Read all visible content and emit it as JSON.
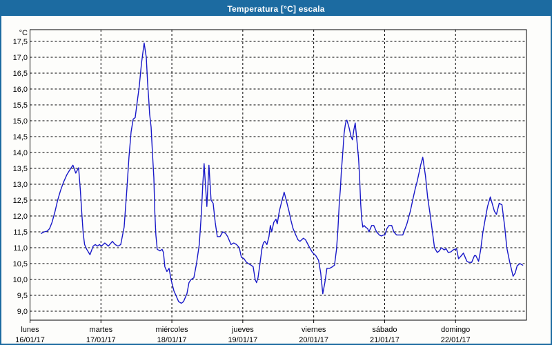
{
  "window": {
    "title": "Temperatura [°C] escala"
  },
  "colors": {
    "titlebar_background": "#1c6ba1",
    "window_border": "#1c6ba1",
    "title_text": "#ffffff",
    "plot_background": "#fdfdfb",
    "plot_border": "#000000",
    "gridline": "#000000",
    "series_line": "#1818c8",
    "axis_text": "#000000"
  },
  "chart_data": {
    "type": "line",
    "title": "Temperatura [°C] escala",
    "legend": "none",
    "grid": "dashed black, horizontal every 0.5 °C, vertical every 1 day",
    "y_axis": {
      "unit_label": "°C",
      "min": 9.0,
      "max": 17.5,
      "tick_step": 0.5,
      "decimal_separator": ",",
      "tick_labels": [
        "17,5",
        "17,0",
        "16,5",
        "16,0",
        "15,5",
        "15,0",
        "14,5",
        "14,0",
        "13,5",
        "13,0",
        "12,5",
        "12,0",
        "11,5",
        "11,0",
        "10,5",
        "10,0",
        "9,5",
        "9,0"
      ]
    },
    "x_axis": {
      "span_days": 7,
      "days": [
        {
          "name": "lunes",
          "date": "16/01/17"
        },
        {
          "name": "martes",
          "date": "17/01/17"
        },
        {
          "name": "miércoles",
          "date": "18/01/17"
        },
        {
          "name": "jueves",
          "date": "19/01/17"
        },
        {
          "name": "viernes",
          "date": "20/01/17"
        },
        {
          "name": "sábado",
          "date": "21/01/17"
        },
        {
          "name": "domingo",
          "date": "22/01/17"
        }
      ]
    },
    "series": [
      {
        "name": "Temperatura",
        "units": "°C",
        "x_units": "days since lunes 16/01/17 00:00",
        "points": [
          [
            0.16,
            11.45
          ],
          [
            0.2,
            11.5
          ],
          [
            0.24,
            11.52
          ],
          [
            0.275,
            11.6
          ],
          [
            0.31,
            11.8
          ],
          [
            0.35,
            12.12
          ],
          [
            0.39,
            12.5
          ],
          [
            0.43,
            12.8
          ],
          [
            0.47,
            13.05
          ],
          [
            0.52,
            13.3
          ],
          [
            0.56,
            13.45
          ],
          [
            0.605,
            13.6
          ],
          [
            0.645,
            13.35
          ],
          [
            0.685,
            13.52
          ],
          [
            0.71,
            12.8
          ],
          [
            0.73,
            12.1
          ],
          [
            0.75,
            11.45
          ],
          [
            0.77,
            11.1
          ],
          [
            0.8,
            10.95
          ],
          [
            0.845,
            10.78
          ],
          [
            0.89,
            11.05
          ],
          [
            0.92,
            11.1
          ],
          [
            0.95,
            11.05
          ],
          [
            0.98,
            11.1
          ],
          [
            1.007,
            11.05
          ],
          [
            1.055,
            11.15
          ],
          [
            1.104,
            11.05
          ],
          [
            1.162,
            11.2
          ],
          [
            1.201,
            11.1
          ],
          [
            1.24,
            11.05
          ],
          [
            1.279,
            11.1
          ],
          [
            1.327,
            11.65
          ],
          [
            1.366,
            12.85
          ],
          [
            1.395,
            13.85
          ],
          [
            1.425,
            14.65
          ],
          [
            1.454,
            15.05
          ],
          [
            1.483,
            15.1
          ],
          [
            1.512,
            15.6
          ],
          [
            1.541,
            16.1
          ],
          [
            1.571,
            16.8
          ],
          [
            1.609,
            17.45
          ],
          [
            1.639,
            17.0
          ],
          [
            1.658,
            16.2
          ],
          [
            1.673,
            15.7
          ],
          [
            1.687,
            15.2
          ],
          [
            1.707,
            14.8
          ],
          [
            1.726,
            14.0
          ],
          [
            1.746,
            13.2
          ],
          [
            1.76,
            12.1
          ],
          [
            1.775,
            11.4
          ],
          [
            1.794,
            10.95
          ],
          [
            1.833,
            10.9
          ],
          [
            1.862,
            10.95
          ],
          [
            1.882,
            10.85
          ],
          [
            1.901,
            10.4
          ],
          [
            1.93,
            10.25
          ],
          [
            1.96,
            10.35
          ],
          [
            1.989,
            10.0
          ],
          [
            2.028,
            9.65
          ],
          [
            2.057,
            9.5
          ],
          [
            2.096,
            9.3
          ],
          [
            2.135,
            9.25
          ],
          [
            2.164,
            9.3
          ],
          [
            2.212,
            9.55
          ],
          [
            2.242,
            9.9
          ],
          [
            2.271,
            10.0
          ],
          [
            2.31,
            10.05
          ],
          [
            2.348,
            10.5
          ],
          [
            2.387,
            11.1
          ],
          [
            2.417,
            12.1
          ],
          [
            2.436,
            13.0
          ],
          [
            2.455,
            13.65
          ],
          [
            2.494,
            12.3
          ],
          [
            2.523,
            13.6
          ],
          [
            2.553,
            12.5
          ],
          [
            2.582,
            12.4
          ],
          [
            2.611,
            11.8
          ],
          [
            2.64,
            11.35
          ],
          [
            2.679,
            11.35
          ],
          [
            2.718,
            11.5
          ],
          [
            2.757,
            11.45
          ],
          [
            2.786,
            11.35
          ],
          [
            2.834,
            11.1
          ],
          [
            2.873,
            11.15
          ],
          [
            2.912,
            11.1
          ],
          [
            2.951,
            11.0
          ],
          [
            2.98,
            10.7
          ],
          [
            3.019,
            10.65
          ],
          [
            3.048,
            10.55
          ],
          [
            3.078,
            10.5
          ],
          [
            3.117,
            10.45
          ],
          [
            3.146,
            10.4
          ],
          [
            3.175,
            10.0
          ],
          [
            3.194,
            9.9
          ],
          [
            3.214,
            10.05
          ],
          [
            3.243,
            10.5
          ],
          [
            3.272,
            11.0
          ],
          [
            3.291,
            11.15
          ],
          [
            3.311,
            11.2
          ],
          [
            3.34,
            11.1
          ],
          [
            3.369,
            11.35
          ],
          [
            3.389,
            11.7
          ],
          [
            3.408,
            11.5
          ],
          [
            3.437,
            11.8
          ],
          [
            3.467,
            11.9
          ],
          [
            3.486,
            11.75
          ],
          [
            3.515,
            12.15
          ],
          [
            3.554,
            12.5
          ],
          [
            3.583,
            12.75
          ],
          [
            3.612,
            12.5
          ],
          [
            3.651,
            12.15
          ],
          [
            3.68,
            11.85
          ],
          [
            3.71,
            11.6
          ],
          [
            3.748,
            11.4
          ],
          [
            3.778,
            11.25
          ],
          [
            3.807,
            11.2
          ],
          [
            3.855,
            11.3
          ],
          [
            3.885,
            11.25
          ],
          [
            3.943,
            11.0
          ],
          [
            3.982,
            10.85
          ],
          [
            4.03,
            10.75
          ],
          [
            4.069,
            10.6
          ],
          [
            4.099,
            10.2
          ],
          [
            4.128,
            9.55
          ],
          [
            4.157,
            9.9
          ],
          [
            4.186,
            10.35
          ],
          [
            4.225,
            10.35
          ],
          [
            4.264,
            10.4
          ],
          [
            4.293,
            10.45
          ],
          [
            4.322,
            10.95
          ],
          [
            4.342,
            11.6
          ],
          [
            4.361,
            12.4
          ],
          [
            4.376,
            12.85
          ],
          [
            4.39,
            13.4
          ],
          [
            4.41,
            14.0
          ],
          [
            4.429,
            14.6
          ],
          [
            4.444,
            14.85
          ],
          [
            4.458,
            15.0
          ],
          [
            4.468,
            15.02
          ],
          [
            4.497,
            14.8
          ],
          [
            4.527,
            14.5
          ],
          [
            4.546,
            14.4
          ],
          [
            4.565,
            14.7
          ],
          [
            4.585,
            14.93
          ],
          [
            4.614,
            14.25
          ],
          [
            4.633,
            13.8
          ],
          [
            4.648,
            13.2
          ],
          [
            4.662,
            12.4
          ],
          [
            4.677,
            11.9
          ],
          [
            4.692,
            11.65
          ],
          [
            4.711,
            11.7
          ],
          [
            4.731,
            11.65
          ],
          [
            4.76,
            11.6
          ],
          [
            4.779,
            11.5
          ],
          [
            4.818,
            11.7
          ],
          [
            4.847,
            11.7
          ],
          [
            4.886,
            11.5
          ],
          [
            4.925,
            11.4
          ],
          [
            4.954,
            11.37
          ],
          [
            4.983,
            11.4
          ],
          [
            5.003,
            11.4
          ],
          [
            5.032,
            11.6
          ],
          [
            5.061,
            11.7
          ],
          [
            5.1,
            11.7
          ],
          [
            5.129,
            11.5
          ],
          [
            5.168,
            11.4
          ],
          [
            5.207,
            11.4
          ],
          [
            5.256,
            11.4
          ],
          [
            5.314,
            11.75
          ],
          [
            5.363,
            12.15
          ],
          [
            5.401,
            12.55
          ],
          [
            5.431,
            12.85
          ],
          [
            5.46,
            13.1
          ],
          [
            5.489,
            13.4
          ],
          [
            5.508,
            13.6
          ],
          [
            5.538,
            13.85
          ],
          [
            5.577,
            13.25
          ],
          [
            5.606,
            12.6
          ],
          [
            5.645,
            12.0
          ],
          [
            5.674,
            11.5
          ],
          [
            5.703,
            11.0
          ],
          [
            5.742,
            10.85
          ],
          [
            5.771,
            10.9
          ],
          [
            5.8,
            11.0
          ],
          [
            5.839,
            10.93
          ],
          [
            5.868,
            10.97
          ],
          [
            5.897,
            10.85
          ],
          [
            5.936,
            10.87
          ],
          [
            5.965,
            10.93
          ],
          [
            6.014,
            10.97
          ],
          [
            6.043,
            10.65
          ],
          [
            6.082,
            10.75
          ],
          [
            6.111,
            10.83
          ],
          [
            6.16,
            10.57
          ],
          [
            6.189,
            10.54
          ],
          [
            6.228,
            10.54
          ],
          [
            6.266,
            10.75
          ],
          [
            6.286,
            10.75
          ],
          [
            6.325,
            10.57
          ],
          [
            6.354,
            10.93
          ],
          [
            6.383,
            11.45
          ],
          [
            6.422,
            11.95
          ],
          [
            6.451,
            12.3
          ],
          [
            6.49,
            12.6
          ],
          [
            6.548,
            12.15
          ],
          [
            6.577,
            12.05
          ],
          [
            6.616,
            12.4
          ],
          [
            6.655,
            12.35
          ],
          [
            6.694,
            11.65
          ],
          [
            6.723,
            11.0
          ],
          [
            6.762,
            10.57
          ],
          [
            6.811,
            10.1
          ],
          [
            6.84,
            10.2
          ],
          [
            6.869,
            10.43
          ],
          [
            6.908,
            10.5
          ],
          [
            6.947,
            10.45
          ]
        ]
      }
    ]
  }
}
